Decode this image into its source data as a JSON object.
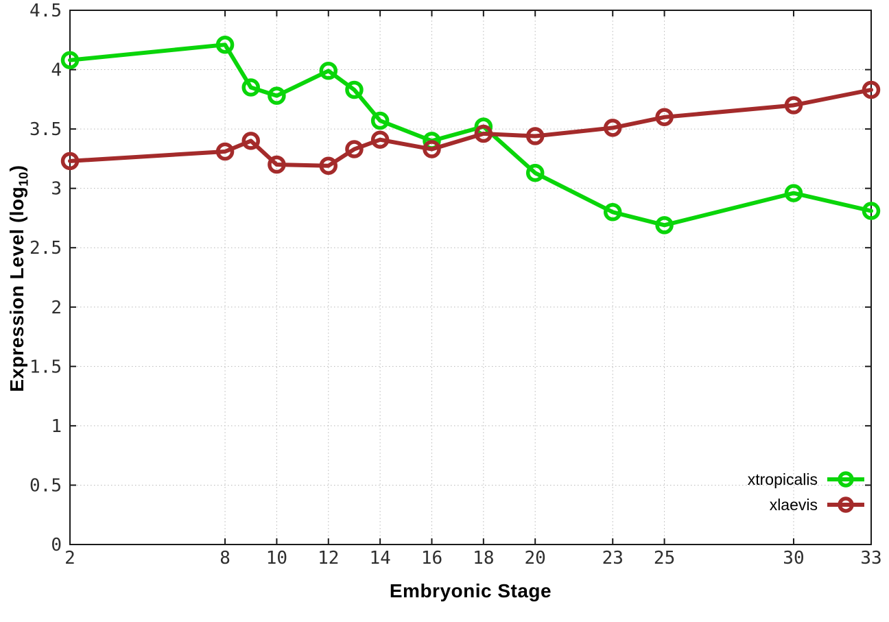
{
  "figure": {
    "xlabel": "Embryonic Stage",
    "ylabel_main": "Expression Level (log",
    "ylabel_sub": "10",
    "ylabel_close": ")"
  },
  "chart_data": {
    "type": "line",
    "title": "",
    "xlabel": "Embryonic Stage",
    "ylabel": "Expression Level (log10)",
    "x": [
      2,
      8,
      9,
      10,
      12,
      13,
      14,
      16,
      18,
      20,
      23,
      25,
      30,
      33
    ],
    "x_ticks": [
      2,
      8,
      10,
      12,
      14,
      16,
      18,
      20,
      23,
      25,
      30,
      33
    ],
    "y_ticks": [
      0,
      0.5,
      1,
      1.5,
      2,
      2.5,
      3,
      3.5,
      4,
      4.5
    ],
    "xlim": [
      2,
      33
    ],
    "ylim": [
      0,
      4.5
    ],
    "grid": true,
    "legend_position": "bottom-right",
    "series": [
      {
        "name": "xtropicalis",
        "color": "#0ad50a",
        "values": [
          4.08,
          4.21,
          3.85,
          3.78,
          3.99,
          3.83,
          3.57,
          3.4,
          3.52,
          3.13,
          2.8,
          2.69,
          2.96,
          2.81
        ]
      },
      {
        "name": "xlaevis",
        "color": "#a42b2b",
        "values": [
          3.23,
          3.31,
          3.4,
          3.2,
          3.19,
          3.33,
          3.41,
          3.33,
          3.46,
          3.44,
          3.51,
          3.6,
          3.7,
          3.83
        ]
      }
    ],
    "colors": {
      "axis": "#1a1a1a",
      "grid": "#b8b8b8",
      "tick_label": "#2e2e2e"
    }
  }
}
